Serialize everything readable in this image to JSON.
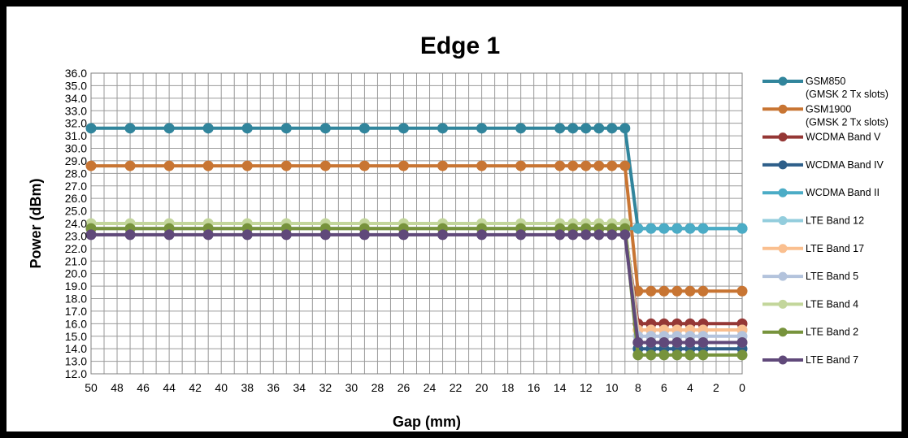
{
  "chart_data": {
    "type": "line",
    "title": "Edge 1",
    "xlabel": "Gap (mm)",
    "ylabel": "Power (dBm)",
    "x_reversed": true,
    "xlim": [
      0,
      50
    ],
    "ylim": [
      12.0,
      36.0
    ],
    "y_ticks": [
      "36.0",
      "35.0",
      "34.0",
      "33.0",
      "32.0",
      "31.0",
      "30.0",
      "29.0",
      "28.0",
      "27.0",
      "26.0",
      "25.0",
      "24.0",
      "23.0",
      "22.0",
      "21.0",
      "20.0",
      "19.0",
      "18.0",
      "17.0",
      "16.0",
      "15.0",
      "14.0",
      "13.0",
      "12.0"
    ],
    "x_ticks": [
      "50",
      "48",
      "46",
      "44",
      "42",
      "40",
      "38",
      "36",
      "34",
      "32",
      "30",
      "28",
      "26",
      "24",
      "22",
      "20",
      "18",
      "16",
      "14",
      "12",
      "10",
      "8",
      "6",
      "4",
      "2",
      "0"
    ],
    "grid": true,
    "legend_position": "right",
    "x": [
      50,
      47,
      44,
      41,
      38,
      35,
      32,
      29,
      26,
      23,
      20,
      17,
      14,
      13,
      12,
      11,
      10,
      9,
      8,
      7,
      6,
      5,
      4,
      3,
      0
    ],
    "series": [
      {
        "name": "GSM850\n(GMSK 2 Tx slots)",
        "color": "#31859c",
        "values": [
          31.6,
          31.6,
          31.6,
          31.6,
          31.6,
          31.6,
          31.6,
          31.6,
          31.6,
          31.6,
          31.6,
          31.6,
          31.6,
          31.6,
          31.6,
          31.6,
          31.6,
          31.6,
          23.6,
          23.6,
          23.6,
          23.6,
          23.6,
          23.6,
          23.6
        ]
      },
      {
        "name": "GSM1900\n(GMSK 2 Tx slots)",
        "color": "#c87533",
        "values": [
          28.6,
          28.6,
          28.6,
          28.6,
          28.6,
          28.6,
          28.6,
          28.6,
          28.6,
          28.6,
          28.6,
          28.6,
          28.6,
          28.6,
          28.6,
          28.6,
          28.6,
          28.6,
          18.6,
          18.6,
          18.6,
          18.6,
          18.6,
          18.6,
          18.6
        ]
      },
      {
        "name": "WCDMA Band V",
        "color": "#953735",
        "values": [
          23.6,
          23.6,
          23.6,
          23.6,
          23.6,
          23.6,
          23.6,
          23.6,
          23.6,
          23.6,
          23.6,
          23.6,
          23.6,
          23.6,
          23.6,
          23.6,
          23.6,
          23.6,
          16.0,
          16.0,
          16.0,
          16.0,
          16.0,
          16.0,
          16.0
        ]
      },
      {
        "name": "WCDMA Band IV",
        "color": "#2e5f8a",
        "values": [
          23.6,
          23.6,
          23.6,
          23.6,
          23.6,
          23.6,
          23.6,
          23.6,
          23.6,
          23.6,
          23.6,
          23.6,
          23.6,
          23.6,
          23.6,
          23.6,
          23.6,
          23.6,
          14.0,
          14.0,
          14.0,
          14.0,
          14.0,
          14.0,
          14.0
        ]
      },
      {
        "name": "WCDMA Band II",
        "color": "#4bacc6",
        "values": [
          23.6,
          23.6,
          23.6,
          23.6,
          23.6,
          23.6,
          23.6,
          23.6,
          23.6,
          23.6,
          23.6,
          23.6,
          23.6,
          23.6,
          23.6,
          23.6,
          23.6,
          23.6,
          23.6,
          23.6,
          23.6,
          23.6,
          23.6,
          23.6,
          23.6
        ]
      },
      {
        "name": "LTE Band 12",
        "color": "#93cddd",
        "values": [
          23.6,
          23.6,
          23.6,
          23.6,
          23.6,
          23.6,
          23.6,
          23.6,
          23.6,
          23.6,
          23.6,
          23.6,
          23.6,
          23.6,
          23.6,
          23.6,
          23.6,
          23.6,
          15.5,
          15.5,
          15.5,
          15.5,
          15.5,
          15.5,
          15.5
        ]
      },
      {
        "name": "LTE Band 17",
        "color": "#fabf8f",
        "values": [
          23.6,
          23.6,
          23.6,
          23.6,
          23.6,
          23.6,
          23.6,
          23.6,
          23.6,
          23.6,
          23.6,
          23.6,
          23.6,
          23.6,
          23.6,
          23.6,
          23.6,
          23.6,
          15.5,
          15.5,
          15.5,
          15.5,
          15.5,
          15.5,
          15.5
        ]
      },
      {
        "name": "LTE Band 5",
        "color": "#b3c3dc",
        "values": [
          23.6,
          23.6,
          23.6,
          23.6,
          23.6,
          23.6,
          23.6,
          23.6,
          23.6,
          23.6,
          23.6,
          23.6,
          23.6,
          23.6,
          23.6,
          23.6,
          23.6,
          23.6,
          15.0,
          15.0,
          15.0,
          15.0,
          15.0,
          15.0,
          15.0
        ]
      },
      {
        "name": "LTE Band 4",
        "color": "#c3d69b",
        "values": [
          24.0,
          24.0,
          24.0,
          24.0,
          24.0,
          24.0,
          24.0,
          24.0,
          24.0,
          24.0,
          24.0,
          24.0,
          24.0,
          24.0,
          24.0,
          24.0,
          24.0,
          24.0,
          14.5,
          14.5,
          14.5,
          14.5,
          14.5,
          14.5,
          14.5
        ]
      },
      {
        "name": "LTE Band 2",
        "color": "#77933c",
        "values": [
          23.6,
          23.6,
          23.6,
          23.6,
          23.6,
          23.6,
          23.6,
          23.6,
          23.6,
          23.6,
          23.6,
          23.6,
          23.6,
          23.6,
          23.6,
          23.6,
          23.6,
          23.6,
          13.5,
          13.5,
          13.5,
          13.5,
          13.5,
          13.5,
          13.5
        ]
      },
      {
        "name": "LTE Band 7",
        "color": "#60497a",
        "values": [
          23.1,
          23.1,
          23.1,
          23.1,
          23.1,
          23.1,
          23.1,
          23.1,
          23.1,
          23.1,
          23.1,
          23.1,
          23.1,
          23.1,
          23.1,
          23.1,
          23.1,
          23.1,
          14.5,
          14.5,
          14.5,
          14.5,
          14.5,
          14.5,
          14.5
        ]
      }
    ]
  }
}
